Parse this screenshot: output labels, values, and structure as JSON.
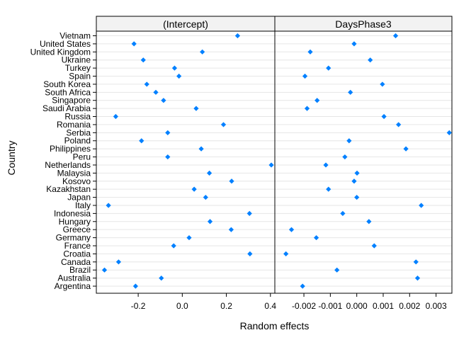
{
  "chart_data": {
    "type": "scatter",
    "xlabel": "Random effects",
    "ylabel": "Country",
    "categories": [
      "Vietnam",
      "United States",
      "United Kingdom",
      "Ukraine",
      "Turkey",
      "Spain",
      "South Korea",
      "South Africa",
      "Singapore",
      "Saudi Arabia",
      "Russia",
      "Romania",
      "Serbia",
      "Poland",
      "Philippines",
      "Peru",
      "Netherlands",
      "Malaysia",
      "Kosovo",
      "Kazakhstan",
      "Japan",
      "Italy",
      "Indonesia",
      "Hungary",
      "Greece",
      "Germany",
      "France",
      "Croatia",
      "Canada",
      "Brazil",
      "Australia",
      "Argentina"
    ],
    "marker_color": "#0080ff",
    "grid": true,
    "panels": [
      {
        "title": "(Intercept)",
        "xlim": [
          -0.39,
          0.42
        ],
        "xticks": [
          -0.2,
          0.0,
          0.2,
          0.4
        ],
        "xtick_labels": [
          "-0.2",
          "0.0",
          "0.2",
          "0.4"
        ],
        "values": [
          0.251,
          -0.219,
          0.091,
          -0.177,
          -0.035,
          -0.015,
          -0.161,
          -0.12,
          -0.085,
          0.063,
          -0.302,
          0.187,
          -0.066,
          -0.185,
          0.086,
          -0.066,
          0.404,
          0.123,
          0.224,
          0.054,
          0.106,
          -0.335,
          0.305,
          0.126,
          0.222,
          0.031,
          -0.039,
          0.307,
          -0.289,
          -0.353,
          -0.095,
          -0.212
        ]
      },
      {
        "title": "DaysPhase3",
        "xlim": [
          -0.0031,
          0.0036
        ],
        "xticks": [
          -0.002,
          -0.001,
          0.0,
          0.001,
          0.002,
          0.003
        ],
        "xtick_labels": [
          "-0.002",
          "-0.001",
          "0.000",
          "0.001",
          "0.002",
          "0.003"
        ],
        "values": [
          0.00147,
          -0.0001,
          -0.00176,
          0.00051,
          -0.00107,
          -0.00196,
          0.00097,
          -0.00024,
          -0.0015,
          -0.00188,
          0.00103,
          0.00158,
          0.0035,
          -0.00029,
          0.00186,
          -0.00045,
          -0.00117,
          1e-05,
          -0.0001,
          -0.00107,
          0.0,
          0.00244,
          -0.00053,
          0.00046,
          -0.00247,
          -0.00153,
          0.00066,
          -0.00268,
          0.00224,
          -0.00075,
          0.0023,
          -0.00205
        ]
      }
    ]
  }
}
